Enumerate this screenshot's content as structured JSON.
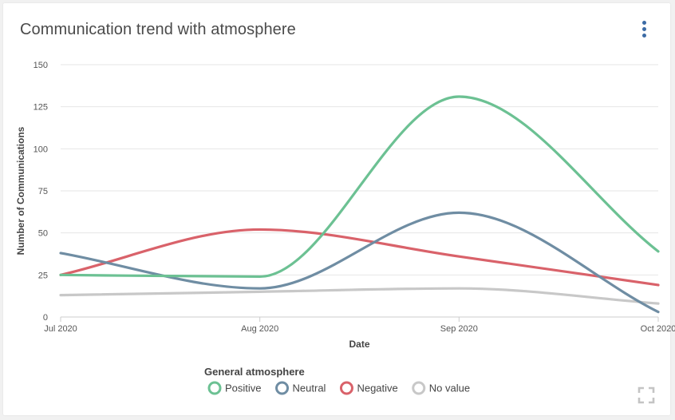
{
  "card": {
    "title": "Communication trend with atmosphere",
    "menu_icon": "more-vertical-icon",
    "fullscreen_icon": "fullscreen-icon"
  },
  "colors": {
    "Positive": "#6cc193",
    "Neutral": "#6f8da3",
    "Negative": "#d9626a",
    "No value": "#c8c8c8",
    "grid": "#e6e6e6",
    "axis": "#cccccc",
    "menu": "#3c6ba5"
  },
  "chart_data": {
    "type": "line",
    "title": "Communication trend with atmosphere",
    "xlabel": "Date",
    "ylabel": "Number of Communications",
    "categories": [
      "Jul 2020",
      "Aug 2020",
      "Sep 2020",
      "Oct 2020"
    ],
    "ylim": [
      0,
      150
    ],
    "yticks": [
      0,
      25,
      50,
      75,
      100,
      125,
      150
    ],
    "grid": true,
    "smooth": true,
    "legend": {
      "title": "General atmosphere",
      "position": "bottom"
    },
    "series": [
      {
        "name": "Positive",
        "values": [
          25,
          24,
          131,
          39
        ]
      },
      {
        "name": "Neutral",
        "values": [
          38,
          17,
          62,
          3
        ]
      },
      {
        "name": "Negative",
        "values": [
          25,
          52,
          36,
          19
        ]
      },
      {
        "name": "No value",
        "values": [
          13,
          15,
          17,
          8
        ]
      }
    ]
  }
}
